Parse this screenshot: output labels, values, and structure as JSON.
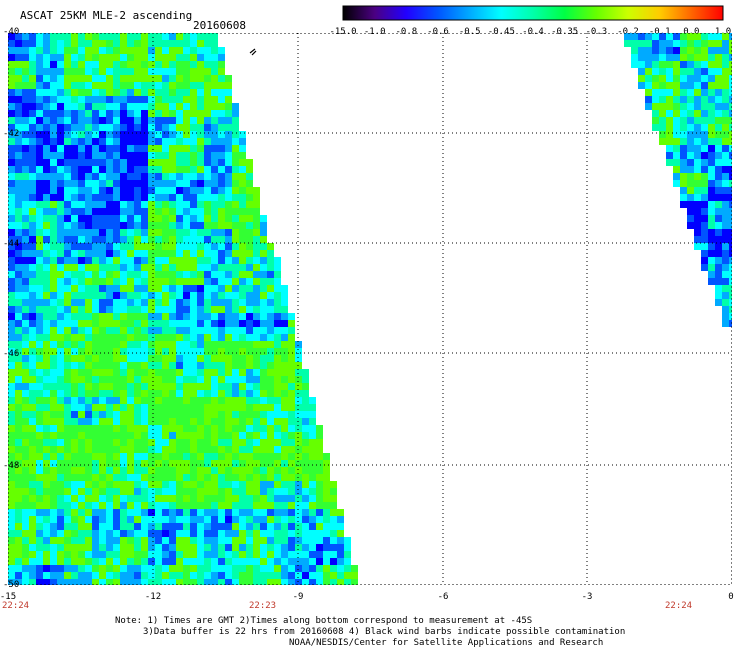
{
  "header": {
    "title": "ASCAT 25KM MLE-2 ascending",
    "date": "20160608"
  },
  "colorbar": {
    "labels": [
      "-15.0",
      "-1.0",
      "-0.8",
      "-0.6",
      "-0.5",
      "-0.45",
      "-0.4",
      "-0.35",
      "-0.3",
      "-0.2",
      "-0.1",
      "0.0",
      "1.0"
    ],
    "colors": [
      "#000000",
      "#4b0082",
      "#2200ff",
      "#0055ff",
      "#00aaff",
      "#00ffff",
      "#00ffaa",
      "#00ff44",
      "#66ff00",
      "#ccff00",
      "#ffcc00",
      "#ff6600",
      "#ff0000"
    ]
  },
  "map": {
    "lon_labels": [
      "-15",
      "-12",
      "-9",
      "-6",
      "-3",
      "0"
    ],
    "lat_labels": [
      "-40",
      "-42",
      "-44",
      "-46",
      "-48",
      "-50"
    ],
    "times": [
      "22:24",
      "22:23",
      "22:24"
    ]
  },
  "notes": {
    "line1": "Note: 1) Times are GMT 2)Times along bottom correspond to measurement at -45S",
    "line2": "3)Data buffer is 22 hrs from 20160608 4) Black wind barbs indicate possible contamination",
    "line3": "NOAA/NESDIS/Center for Satellite Applications and Research"
  }
}
